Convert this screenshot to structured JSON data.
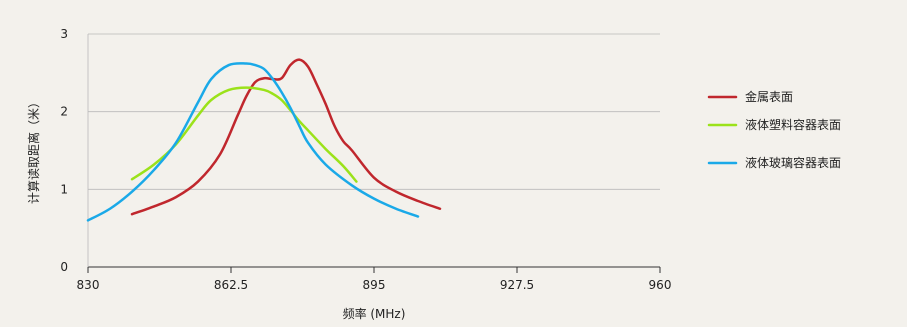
{
  "chart_data": {
    "type": "line",
    "title": "",
    "xlabel": "频率 (MHz)",
    "ylabel": "计算读取距离（米）",
    "xlim": [
      830,
      960
    ],
    "ylim": [
      0,
      3
    ],
    "x_ticks": [
      "830",
      "862.5",
      "895",
      "927.5",
      "960"
    ],
    "y_ticks": [
      "0",
      "1",
      "2",
      "3"
    ],
    "grid": "horizontal",
    "legend_position": "right",
    "series": [
      {
        "name": "金属表面",
        "color": "#c0272d",
        "x": [
          840,
          845,
          850,
          855,
          860,
          864,
          866,
          868,
          870,
          872,
          874,
          876,
          878,
          880,
          882,
          884,
          886,
          888,
          890,
          895,
          900,
          905,
          910
        ],
        "y": [
          0.68,
          0.78,
          0.9,
          1.1,
          1.45,
          1.95,
          2.2,
          2.38,
          2.43,
          2.42,
          2.43,
          2.6,
          2.67,
          2.58,
          2.35,
          2.1,
          1.82,
          1.62,
          1.5,
          1.15,
          0.97,
          0.85,
          0.75
        ]
      },
      {
        "name": "液体塑料容器表面",
        "color": "#9be21a",
        "x": [
          840,
          845,
          850,
          855,
          858,
          862,
          866,
          870,
          872,
          874,
          876,
          878,
          880,
          884,
          888,
          891
        ],
        "y": [
          1.13,
          1.32,
          1.58,
          1.95,
          2.15,
          2.28,
          2.31,
          2.28,
          2.23,
          2.15,
          2.02,
          1.88,
          1.76,
          1.52,
          1.3,
          1.1
        ]
      },
      {
        "name": "液体玻璃容器表面",
        "color": "#1aa9e8",
        "x": [
          830,
          835,
          840,
          845,
          850,
          855,
          858,
          862,
          866,
          868,
          870,
          872,
          874,
          876,
          878,
          880,
          884,
          890,
          895,
          900,
          905
        ],
        "y": [
          0.6,
          0.75,
          0.97,
          1.25,
          1.6,
          2.12,
          2.42,
          2.6,
          2.62,
          2.6,
          2.55,
          2.42,
          2.25,
          2.05,
          1.82,
          1.6,
          1.32,
          1.05,
          0.88,
          0.75,
          0.65
        ]
      }
    ]
  }
}
